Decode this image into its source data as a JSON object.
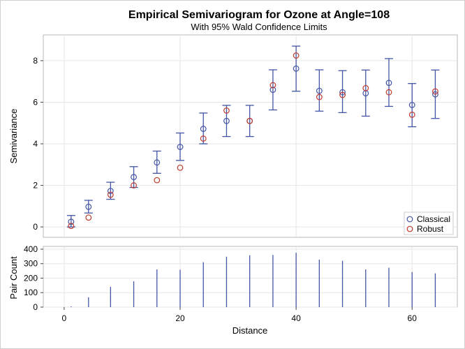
{
  "chart_data": [
    {
      "type": "scatter",
      "title": "Empirical Semivariogram for Ozone at Angle=108",
      "subtitle": "With 95% Wald Confidence Limits",
      "xlabel": "",
      "ylabel": "Semivariance",
      "xlim": [
        -3.6,
        67.8
      ],
      "ylim": [
        -0.5,
        9.24
      ],
      "xticks": [
        0,
        20,
        40,
        60
      ],
      "yticks": [
        0,
        2,
        4,
        6,
        8
      ],
      "grid": true,
      "legend_position": "bottom-right",
      "x": [
        1.2,
        4.2,
        8,
        12,
        16,
        20,
        24,
        28,
        32,
        36,
        40,
        44,
        48,
        52,
        56,
        60,
        64
      ],
      "series": [
        {
          "name": "Classical",
          "color": "#4455a5",
          "values": [
            0.25,
            0.97,
            1.73,
            2.4,
            3.1,
            3.85,
            4.72,
            5.1,
            5.1,
            6.6,
            7.62,
            6.55,
            6.48,
            6.43,
            6.93,
            5.87,
            6.38
          ],
          "lower": [
            0.0,
            0.67,
            1.33,
            1.9,
            2.58,
            3.2,
            4.0,
            4.35,
            4.35,
            5.63,
            6.53,
            5.57,
            5.5,
            5.33,
            5.8,
            4.82,
            5.22
          ],
          "upper": [
            0.55,
            1.28,
            2.15,
            2.9,
            3.65,
            4.52,
            5.48,
            5.85,
            5.85,
            7.56,
            8.7,
            7.56,
            7.52,
            7.55,
            8.1,
            6.9,
            7.55
          ]
        },
        {
          "name": "Robust",
          "color": "#c0392b",
          "values": [
            0.05,
            0.45,
            1.55,
            2.0,
            2.25,
            2.85,
            4.25,
            5.6,
            5.1,
            6.82,
            8.25,
            6.25,
            6.35,
            6.68,
            6.48,
            5.4,
            6.52
          ]
        }
      ]
    },
    {
      "type": "bar",
      "xlabel": "Distance",
      "ylabel": "Pair Count",
      "xlim": [
        -3.6,
        67.8
      ],
      "ylim": [
        0,
        419
      ],
      "xticks": [
        0,
        20,
        40,
        60
      ],
      "yticks": [
        0,
        100,
        200,
        300,
        400
      ],
      "grid": true,
      "color": "#4455a5",
      "x": [
        1.2,
        4.2,
        8,
        12,
        16,
        20,
        24,
        28,
        32,
        36,
        40,
        44,
        48,
        52,
        56,
        60,
        64
      ],
      "values": [
        5,
        68,
        140,
        178,
        260,
        258,
        310,
        348,
        358,
        360,
        375,
        328,
        320,
        260,
        272,
        242,
        233
      ]
    }
  ]
}
